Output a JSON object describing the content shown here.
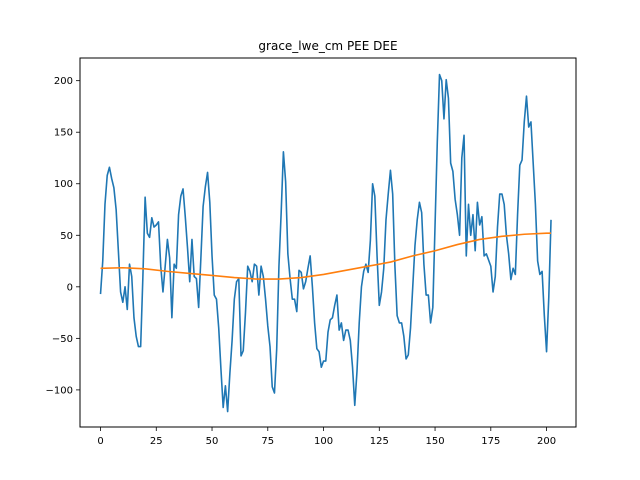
{
  "chart_data": {
    "type": "line",
    "title": "grace_lwe_cm PEE DEE",
    "xlabel": "",
    "ylabel": "",
    "xlim": [
      -9.2,
      213.2
    ],
    "ylim": [
      -136,
      222
    ],
    "xticks": [
      0,
      25,
      50,
      75,
      100,
      125,
      150,
      175,
      200
    ],
    "yticks": [
      -100,
      -50,
      0,
      50,
      100,
      150,
      200
    ],
    "grid": false,
    "series": [
      {
        "color": "#1f77b4",
        "points": [
          [
            0,
            -7
          ],
          [
            1,
            25
          ],
          [
            2,
            80
          ],
          [
            3,
            108
          ],
          [
            4,
            116
          ],
          [
            5,
            105
          ],
          [
            6,
            96
          ],
          [
            7,
            75
          ],
          [
            8,
            35
          ],
          [
            9,
            -5
          ],
          [
            10,
            -15
          ],
          [
            11,
            0
          ],
          [
            12,
            -22
          ],
          [
            13,
            22
          ],
          [
            14,
            10
          ],
          [
            15,
            -30
          ],
          [
            16,
            -48
          ],
          [
            17,
            -58
          ],
          [
            18,
            -58
          ],
          [
            19,
            10
          ],
          [
            20,
            87
          ],
          [
            21,
            52
          ],
          [
            22,
            48
          ],
          [
            23,
            67
          ],
          [
            24,
            58
          ],
          [
            25,
            60
          ],
          [
            26,
            63
          ],
          [
            27,
            20
          ],
          [
            28,
            -5
          ],
          [
            29,
            20
          ],
          [
            30,
            46
          ],
          [
            31,
            28
          ],
          [
            32,
            -30
          ],
          [
            33,
            22
          ],
          [
            34,
            18
          ],
          [
            35,
            70
          ],
          [
            36,
            88
          ],
          [
            37,
            95
          ],
          [
            38,
            68
          ],
          [
            39,
            38
          ],
          [
            40,
            5
          ],
          [
            41,
            46
          ],
          [
            42,
            10
          ],
          [
            43,
            8
          ],
          [
            44,
            -20
          ],
          [
            45,
            28
          ],
          [
            46,
            78
          ],
          [
            47,
            97
          ],
          [
            48,
            111
          ],
          [
            49,
            82
          ],
          [
            50,
            30
          ],
          [
            51,
            -8
          ],
          [
            52,
            -12
          ],
          [
            53,
            -40
          ],
          [
            54,
            -80
          ],
          [
            55,
            -117
          ],
          [
            56,
            -96
          ],
          [
            57,
            -121
          ],
          [
            58,
            -84
          ],
          [
            59,
            -52
          ],
          [
            60,
            -12
          ],
          [
            61,
            5
          ],
          [
            62,
            8
          ],
          [
            63,
            -67
          ],
          [
            64,
            -62
          ],
          [
            65,
            -25
          ],
          [
            66,
            20
          ],
          [
            67,
            15
          ],
          [
            68,
            5
          ],
          [
            69,
            22
          ],
          [
            70,
            20
          ],
          [
            71,
            -8
          ],
          [
            72,
            20
          ],
          [
            73,
            10
          ],
          [
            74,
            -12
          ],
          [
            75,
            -38
          ],
          [
            76,
            -58
          ],
          [
            77,
            -97
          ],
          [
            78,
            -103
          ],
          [
            79,
            -60
          ],
          [
            80,
            20
          ],
          [
            81,
            72
          ],
          [
            82,
            131
          ],
          [
            83,
            102
          ],
          [
            84,
            32
          ],
          [
            85,
            8
          ],
          [
            86,
            -12
          ],
          [
            87,
            -12
          ],
          [
            88,
            -24
          ],
          [
            89,
            16
          ],
          [
            90,
            14
          ],
          [
            91,
            -2
          ],
          [
            92,
            5
          ],
          [
            93,
            18
          ],
          [
            94,
            30
          ],
          [
            95,
            0
          ],
          [
            96,
            -35
          ],
          [
            97,
            -60
          ],
          [
            98,
            -63
          ],
          [
            99,
            -78
          ],
          [
            100,
            -72
          ],
          [
            101,
            -72
          ],
          [
            102,
            -44
          ],
          [
            103,
            -32
          ],
          [
            104,
            -30
          ],
          [
            105,
            -18
          ],
          [
            106,
            -8
          ],
          [
            107,
            -42
          ],
          [
            108,
            -35
          ],
          [
            109,
            -52
          ],
          [
            110,
            -42
          ],
          [
            111,
            -42
          ],
          [
            112,
            -52
          ],
          [
            113,
            -78
          ],
          [
            114,
            -115
          ],
          [
            115,
            -82
          ],
          [
            116,
            -35
          ],
          [
            117,
            0
          ],
          [
            118,
            15
          ],
          [
            119,
            22
          ],
          [
            120,
            14
          ],
          [
            121,
            45
          ],
          [
            122,
            100
          ],
          [
            123,
            88
          ],
          [
            124,
            30
          ],
          [
            125,
            -18
          ],
          [
            126,
            -5
          ],
          [
            127,
            18
          ],
          [
            128,
            65
          ],
          [
            129,
            90
          ],
          [
            130,
            113
          ],
          [
            131,
            90
          ],
          [
            132,
            20
          ],
          [
            133,
            -28
          ],
          [
            134,
            -35
          ],
          [
            135,
            -35
          ],
          [
            136,
            -48
          ],
          [
            137,
            -70
          ],
          [
            138,
            -66
          ],
          [
            139,
            -40
          ],
          [
            140,
            0
          ],
          [
            141,
            40
          ],
          [
            142,
            65
          ],
          [
            143,
            82
          ],
          [
            144,
            72
          ],
          [
            145,
            22
          ],
          [
            146,
            -8
          ],
          [
            147,
            -8
          ],
          [
            148,
            -35
          ],
          [
            149,
            -20
          ],
          [
            150,
            60
          ],
          [
            151,
            140
          ],
          [
            152,
            206
          ],
          [
            153,
            200
          ],
          [
            154,
            163
          ],
          [
            155,
            201
          ],
          [
            156,
            183
          ],
          [
            157,
            120
          ],
          [
            158,
            112
          ],
          [
            159,
            85
          ],
          [
            160,
            70
          ],
          [
            161,
            50
          ],
          [
            162,
            125
          ],
          [
            163,
            147
          ],
          [
            164,
            30
          ],
          [
            165,
            80
          ],
          [
            166,
            50
          ],
          [
            167,
            70
          ],
          [
            168,
            35
          ],
          [
            169,
            82
          ],
          [
            170,
            60
          ],
          [
            171,
            68
          ],
          [
            172,
            30
          ],
          [
            173,
            32
          ],
          [
            174,
            26
          ],
          [
            175,
            20
          ],
          [
            176,
            -5
          ],
          [
            177,
            10
          ],
          [
            178,
            58
          ],
          [
            179,
            90
          ],
          [
            180,
            90
          ],
          [
            181,
            80
          ],
          [
            182,
            50
          ],
          [
            183,
            32
          ],
          [
            184,
            7
          ],
          [
            185,
            18
          ],
          [
            186,
            12
          ],
          [
            187,
            70
          ],
          [
            188,
            118
          ],
          [
            189,
            123
          ],
          [
            190,
            160
          ],
          [
            191,
            185
          ],
          [
            192,
            155
          ],
          [
            193,
            160
          ],
          [
            194,
            120
          ],
          [
            195,
            80
          ],
          [
            196,
            25
          ],
          [
            197,
            12
          ],
          [
            198,
            15
          ],
          [
            199,
            -28
          ],
          [
            200,
            -63
          ],
          [
            201,
            -10
          ],
          [
            202,
            65
          ]
        ]
      },
      {
        "color": "#ff7f0e",
        "points": [
          [
            0,
            18
          ],
          [
            10,
            18.5
          ],
          [
            20,
            17.5
          ],
          [
            30,
            15
          ],
          [
            40,
            13
          ],
          [
            50,
            11
          ],
          [
            60,
            9
          ],
          [
            70,
            7.5
          ],
          [
            80,
            7.5
          ],
          [
            90,
            9
          ],
          [
            100,
            12
          ],
          [
            110,
            16
          ],
          [
            120,
            20
          ],
          [
            130,
            24
          ],
          [
            140,
            30
          ],
          [
            150,
            35
          ],
          [
            160,
            41
          ],
          [
            170,
            46
          ],
          [
            180,
            49
          ],
          [
            190,
            51
          ],
          [
            200,
            52
          ],
          [
            202,
            52
          ]
        ]
      }
    ]
  }
}
